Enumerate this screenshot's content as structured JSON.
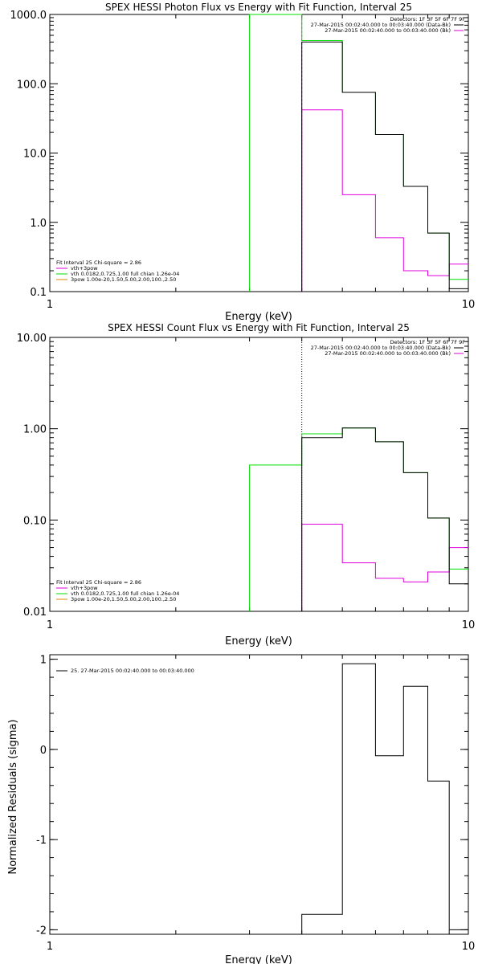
{
  "colors": {
    "black": "#000000",
    "green": "#00dd00",
    "magenta": "#dd00dd",
    "blue": "#3333ff"
  },
  "chart_data": [
    {
      "type": "line",
      "title": "SPEX HESSI Photon Flux vs Energy with Fit Function, Interval 25",
      "xlabel": "Energy (keV)",
      "ylabel": "",
      "xscale": "log",
      "yscale": "log",
      "xlim": [
        1,
        10
      ],
      "ylim": [
        0.1,
        1000
      ],
      "xticks": [
        "1",
        "10"
      ],
      "yticks": [
        {
          "v": 0.1,
          "label": "0.1"
        },
        {
          "v": 1,
          "label": "1.0"
        },
        {
          "v": 10,
          "label": "10.0"
        },
        {
          "v": 100,
          "label": "100.0"
        },
        {
          "v": 1000,
          "label": "1000.0"
        }
      ],
      "vline": {
        "x": 4.0,
        "color": "#dd00dd",
        "style": "dashed"
      },
      "legend_right": [
        {
          "text": "Detectors: 1F 3F 5F 6F 7F 9F",
          "color": null
        },
        {
          "text": "27-Mar-2015 00:02:40.000 to 00:03:40.000 (Data-Bk)",
          "color": "#000000"
        },
        {
          "text": "27-Mar-2015 00:02:40.000 to 00:03:40.000 (Bk)",
          "color": "#dd00dd"
        }
      ],
      "legend_left": [
        {
          "text": "Fit Interval 25   Chi-square = 2.86",
          "color": null
        },
        {
          "text": "vth+3pow",
          "color": "#dd00dd"
        },
        {
          "text": "vth 0.0182,0.725,1.00  full chian 1.26e-04",
          "color": "#00dd00"
        },
        {
          "text": "3pow 1.00e-20,1.50,5.00,2.00,100.,2.50",
          "color": "#dd8800"
        }
      ],
      "series": [
        {
          "color": "#dd00dd",
          "edges": [
            4,
            5,
            6,
            7,
            8,
            9,
            10
          ],
          "values": [
            42,
            2.5,
            0.6,
            0.2,
            0.17,
            0.25
          ],
          "first_from": 0.1
        },
        {
          "color": "#00dd00",
          "edges": [
            3,
            4,
            5,
            6,
            7,
            8,
            9,
            10
          ],
          "values": [
            1000,
            420,
            75,
            18.5,
            3.3,
            0.7,
            0.15
          ],
          "first_from": 0.1
        },
        {
          "color": "#000000",
          "edges": [
            4,
            5,
            6,
            7,
            8,
            9,
            10
          ],
          "values": [
            400,
            75,
            18.5,
            3.3,
            0.7,
            0.11
          ],
          "first_from": 0.1
        }
      ]
    },
    {
      "type": "line",
      "title": "SPEX HESSI Count Flux vs Energy with Fit Function, Interval 25",
      "xlabel": "Energy (keV)",
      "ylabel": "",
      "xscale": "log",
      "yscale": "log",
      "xlim": [
        1,
        10
      ],
      "ylim": [
        0.01,
        10
      ],
      "xticks": [
        "1",
        "10"
      ],
      "yticks": [
        {
          "v": 0.01,
          "label": "0.01"
        },
        {
          "v": 0.1,
          "label": "0.10"
        },
        {
          "v": 1,
          "label": "1.00"
        },
        {
          "v": 10,
          "label": "10.00"
        }
      ],
      "vline": {
        "x": 4.0,
        "color": "#000000",
        "style": "dotted"
      },
      "legend_right": [
        {
          "text": "Detectors: 1F 3F 5F 6F 7F 9F",
          "color": null
        },
        {
          "text": "27-Mar-2015 00:02:40.000 to 00:03:40.000 (Data-Bk)",
          "color": "#000000"
        },
        {
          "text": "27-Mar-2015 00:02:40.000 to 00:03:40.000 (Bk)",
          "color": "#dd00dd"
        }
      ],
      "legend_left": [
        {
          "text": "Fit Interval 25   Chi-square = 2.86",
          "color": null
        },
        {
          "text": "vth+3pow",
          "color": "#dd00dd"
        },
        {
          "text": "vth 0.0182,0.725,1.00  full chian 1.26e-04",
          "color": "#00dd00"
        },
        {
          "text": "3pow 1.00e-20,1.50,5.00,2.00,100.,2.50",
          "color": "#dd8800"
        }
      ],
      "series": [
        {
          "color": "#dd00dd",
          "edges": [
            4,
            5,
            6,
            7,
            8,
            9,
            10
          ],
          "values": [
            0.09,
            0.034,
            0.023,
            0.021,
            0.027,
            0.05
          ],
          "first_from": 0.01
        },
        {
          "color": "#00dd00",
          "edges": [
            3,
            4,
            5,
            6,
            7,
            8,
            9,
            10
          ],
          "values": [
            0.4,
            0.88,
            1.02,
            0.72,
            0.33,
            0.105,
            0.029
          ],
          "first_from": 0.01
        },
        {
          "color": "#000000",
          "edges": [
            4,
            5,
            6,
            7,
            8,
            9,
            10
          ],
          "values": [
            0.8,
            1.02,
            0.72,
            0.33,
            0.105,
            0.02
          ],
          "first_from": 0.01
        }
      ]
    },
    {
      "type": "line",
      "title": "",
      "xlabel": "Energy (keV)",
      "ylabel": "Normalized Residuals (sigma)",
      "xscale": "log",
      "yscale": "linear",
      "xlim": [
        1,
        10
      ],
      "ylim": [
        -2.05,
        1.05
      ],
      "xticks": [
        "1",
        "10"
      ],
      "yticks": [
        {
          "v": 1,
          "label": "1"
        },
        {
          "v": 0,
          "label": "0"
        },
        {
          "v": -1,
          "label": "-1"
        },
        {
          "v": -2,
          "label": "-2"
        }
      ],
      "legend_left": [
        {
          "text": "25. 27-Mar-2015 00:02:40.000 to 00:03:40.000",
          "color": "#000000"
        }
      ],
      "series": [
        {
          "color": "#000000",
          "edges": [
            4,
            5,
            6,
            7,
            8,
            9,
            10
          ],
          "values": [
            -1.83,
            0.95,
            -0.07,
            0.7,
            -0.35,
            -2.0
          ],
          "first_from": -2.05
        }
      ]
    }
  ]
}
